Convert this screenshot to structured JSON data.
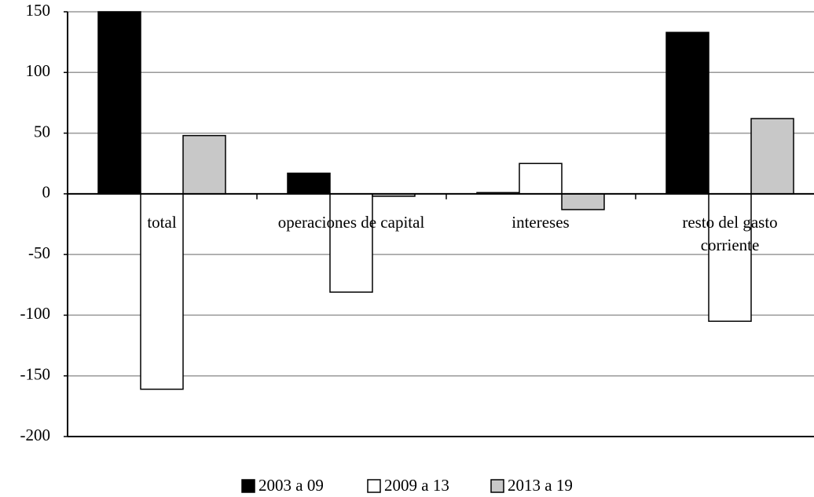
{
  "chart_data": {
    "type": "bar",
    "categories": [
      "total",
      "operaciones de capital",
      "intereses",
      "resto del gasto corriente"
    ],
    "series": [
      {
        "name": "2003 a 09",
        "color": "#000000",
        "values": [
          150,
          17,
          1,
          133
        ]
      },
      {
        "name": "2009 a 13",
        "color": "#ffffff",
        "values": [
          -161,
          -81,
          25,
          -105
        ]
      },
      {
        "name": "2013 a 19",
        "color": "#c8c8c8",
        "values": [
          48,
          -2,
          -13,
          62
        ]
      }
    ],
    "ylim": [
      -200,
      150
    ],
    "yticks": [
      -200,
      -150,
      -100,
      -50,
      0,
      50,
      100,
      150
    ],
    "grid": true
  }
}
